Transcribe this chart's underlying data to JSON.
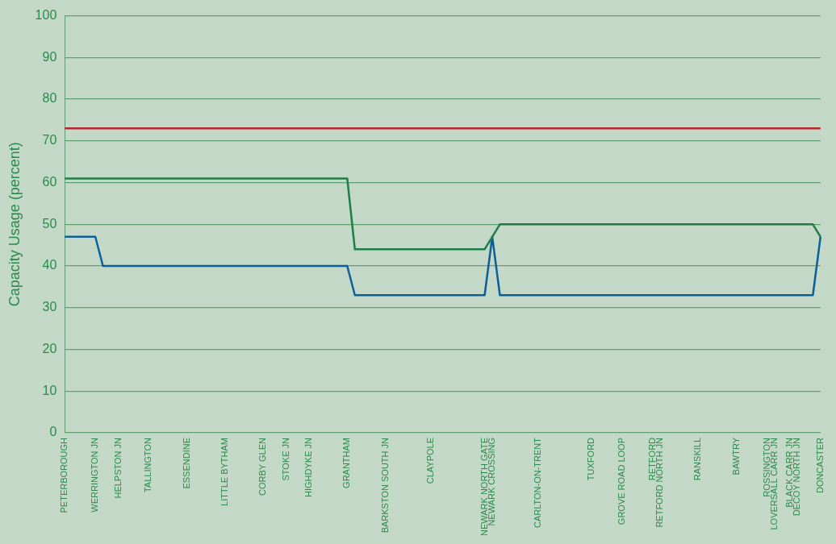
{
  "chart_data": {
    "type": "line",
    "ylabel": "Capacity Usage (percent)",
    "categories": [
      "PETERBOROUGH",
      null,
      null,
      null,
      "WERRINGTON JN",
      null,
      null,
      "HELPSTON JN",
      null,
      null,
      null,
      "TALLINGTON",
      null,
      null,
      null,
      null,
      "ESSENDINE",
      null,
      null,
      null,
      null,
      "LITTLE BYTHAM",
      null,
      null,
      null,
      null,
      "CORBY GLEN",
      null,
      null,
      "STOKE JN",
      null,
      null,
      "HIGHDYKE JN",
      null,
      null,
      null,
      null,
      "GRANTHAM",
      null,
      null,
      null,
      null,
      "BARKSTON SOUTH JN",
      null,
      null,
      null,
      null,
      null,
      "CLAYPOLE",
      null,
      null,
      null,
      null,
      null,
      null,
      "NEWARK NORTH GATE",
      "NEWARK CROSSING",
      null,
      null,
      null,
      null,
      null,
      "CARLTON-ON-TRENT",
      null,
      null,
      null,
      null,
      null,
      null,
      "TUXFORD",
      null,
      null,
      null,
      "GROVE ROAD LOOP",
      null,
      null,
      null,
      "RETFORD",
      "RETFORD NORTH JN",
      null,
      null,
      null,
      null,
      "RANSKILL",
      null,
      null,
      null,
      null,
      "BAWTRY",
      null,
      null,
      null,
      "ROSSINGTON",
      "LOVERSALL CARR JN",
      null,
      "BLACK CARR JN",
      "DECOY NORTH JN",
      null,
      null,
      "DONCASTER"
    ],
    "series": [
      {
        "color": "#b3262e",
        "values": [
          73,
          73,
          73,
          73,
          73,
          73,
          73,
          73,
          73,
          73,
          73,
          73,
          73,
          73,
          73,
          73,
          73,
          73,
          73,
          73,
          73,
          73,
          73,
          73,
          73,
          73,
          73,
          73,
          73,
          73,
          73,
          73,
          73,
          73,
          73,
          73,
          73,
          73,
          73,
          73,
          73,
          73,
          73,
          73,
          73,
          73,
          73,
          73,
          73,
          73,
          73,
          73,
          73,
          73,
          73,
          73,
          73,
          73,
          73,
          73,
          73,
          73,
          73,
          73,
          73,
          73,
          73,
          73,
          73,
          73,
          73,
          73,
          73,
          73,
          73,
          73,
          73,
          73,
          73,
          73,
          73,
          73,
          73,
          73,
          73,
          73,
          73,
          73,
          73,
          73,
          73,
          73,
          73,
          73,
          73,
          73,
          73,
          73,
          73,
          73
        ]
      },
      {
        "color": "#1f7d48",
        "values": [
          61,
          61,
          61,
          61,
          61,
          61,
          61,
          61,
          61,
          61,
          61,
          61,
          61,
          61,
          61,
          61,
          61,
          61,
          61,
          61,
          61,
          61,
          61,
          61,
          61,
          61,
          61,
          61,
          61,
          61,
          61,
          61,
          61,
          61,
          61,
          61,
          61,
          61,
          44,
          44,
          44,
          44,
          44,
          44,
          44,
          44,
          44,
          44,
          44,
          44,
          44,
          44,
          44,
          44,
          44,
          44,
          47,
          50,
          50,
          50,
          50,
          50,
          50,
          50,
          50,
          50,
          50,
          50,
          50,
          50,
          50,
          50,
          50,
          50,
          50,
          50,
          50,
          50,
          50,
          50,
          50,
          50,
          50,
          50,
          50,
          50,
          50,
          50,
          50,
          50,
          50,
          50,
          50,
          50,
          50,
          50,
          50,
          50,
          50,
          47
        ]
      },
      {
        "color": "#0d5f9a",
        "values": [
          47,
          47,
          47,
          47,
          47,
          40,
          40,
          40,
          40,
          40,
          40,
          40,
          40,
          40,
          40,
          40,
          40,
          40,
          40,
          40,
          40,
          40,
          40,
          40,
          40,
          40,
          40,
          40,
          40,
          40,
          40,
          40,
          40,
          40,
          40,
          40,
          40,
          40,
          33,
          33,
          33,
          33,
          33,
          33,
          33,
          33,
          33,
          33,
          33,
          33,
          33,
          33,
          33,
          33,
          33,
          33,
          47,
          33,
          33,
          33,
          33,
          33,
          33,
          33,
          33,
          33,
          33,
          33,
          33,
          33,
          33,
          33,
          33,
          33,
          33,
          33,
          33,
          33,
          33,
          33,
          33,
          33,
          33,
          33,
          33,
          33,
          33,
          33,
          33,
          33,
          33,
          33,
          33,
          33,
          33,
          33,
          33,
          33,
          33,
          47
        ]
      }
    ],
    "ylim": [
      0,
      100
    ],
    "yticks": [
      0,
      10,
      20,
      30,
      40,
      50,
      60,
      70,
      80,
      90,
      100
    ],
    "grid": "y",
    "marker": "none",
    "line_style": "solid"
  }
}
